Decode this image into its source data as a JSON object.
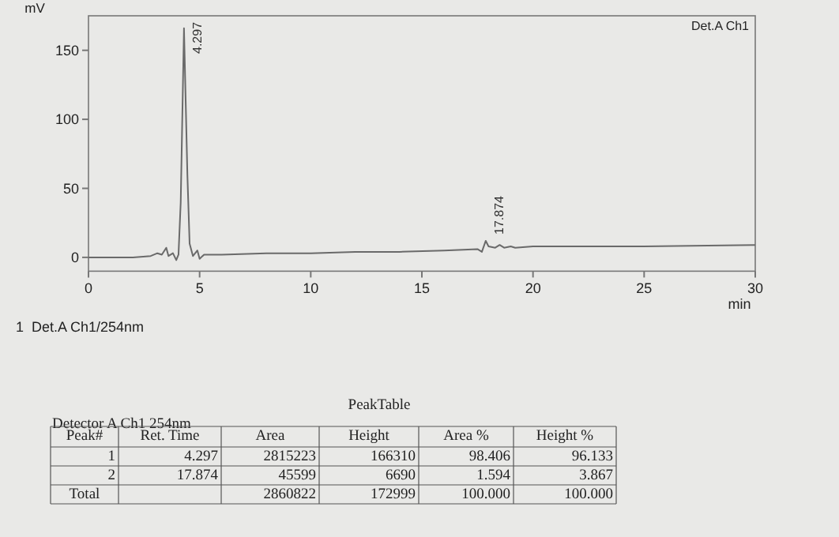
{
  "chart_data": {
    "type": "line",
    "xlabel": "min",
    "ylabel": "mV",
    "xlim": [
      0,
      30
    ],
    "ylim": [
      -10,
      175
    ],
    "xticks": [
      0,
      5,
      10,
      15,
      20,
      25,
      30
    ],
    "yticks": [
      0,
      50,
      100,
      150
    ],
    "grid": false,
    "marker": "none",
    "line_style": "solid",
    "series": [
      {
        "color": "#6a6a6a",
        "x": [
          0,
          1,
          2,
          2.8,
          3.1,
          3.3,
          3.5,
          3.6,
          3.8,
          3.95,
          4.05,
          4.15,
          4.297,
          4.45,
          4.55,
          4.7,
          4.9,
          5.0,
          5.2,
          6,
          8,
          10,
          12,
          14,
          16,
          17.5,
          17.7,
          17.874,
          18.0,
          18.3,
          18.5,
          18.7,
          19,
          19.2,
          20,
          25,
          30
        ],
        "values": [
          0,
          0,
          0,
          1,
          3,
          2,
          7,
          1,
          3,
          -2,
          2,
          40,
          166,
          60,
          10,
          1,
          5,
          -1,
          2,
          2,
          3,
          3,
          4,
          4,
          5,
          6,
          4,
          12,
          8,
          7,
          9,
          7,
          8,
          7,
          8,
          8,
          9
        ]
      }
    ],
    "annotations": [
      {
        "text": "4.297",
        "x": 4.297,
        "y": 166
      },
      {
        "text": "17.874",
        "x": 17.874,
        "y": 12
      },
      "Det.A Ch1",
      "1  Det.A Ch1/254nm",
      "PeakTable",
      "Detector A Ch1 254nm",
      "Peak#",
      "Ret. Time",
      "Area",
      "Height",
      "Area %",
      "Height %",
      "1",
      "4.297",
      "2815223",
      "166310",
      "98.406",
      "96.133",
      "2",
      "17.874",
      "45599",
      "6690",
      "1.594",
      "3.867",
      "Total",
      "2860822",
      "172999",
      "100.000",
      "100.000"
    ]
  }
}
